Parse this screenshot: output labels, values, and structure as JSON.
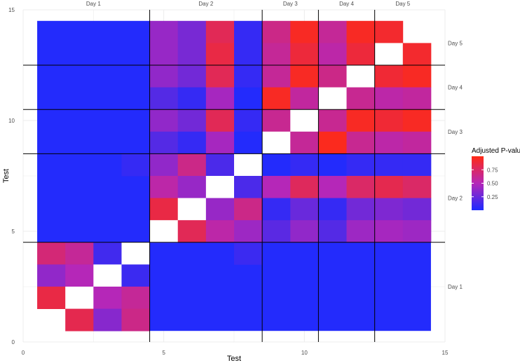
{
  "chart_data": {
    "type": "heatmap",
    "xlabel": "Test",
    "ylabel": "Test",
    "xlim": [
      0,
      15
    ],
    "ylim": [
      0,
      15
    ],
    "x_ticks": [
      0,
      5,
      10,
      15
    ],
    "y_ticks": [
      0,
      5,
      10,
      15
    ],
    "grid": true,
    "legend": {
      "title": "Adjusted P-value",
      "position": "right",
      "ticks": [
        0.25,
        0.5,
        0.75
      ],
      "range": [
        0,
        1
      ]
    },
    "colors": {
      "low": "#1d2bff",
      "mid": "#b527b8",
      "high": "#ff2a14",
      "diag": "#ffffff",
      "grid": "#ececec",
      "panel": "#ffffff"
    },
    "group_labels_top": [
      {
        "label": "Day 1",
        "from": 0.5,
        "to": 4.5
      },
      {
        "label": "Day 2",
        "from": 4.5,
        "to": 8.5
      },
      {
        "label": "Day 3",
        "from": 8.5,
        "to": 10.5
      },
      {
        "label": "Day 4",
        "from": 10.5,
        "to": 12.5
      },
      {
        "label": "Day 5",
        "from": 12.5,
        "to": 14.5
      }
    ],
    "group_labels_right": [
      {
        "label": "Day 1",
        "from": 0.5,
        "to": 4.5
      },
      {
        "label": "Day 2",
        "from": 4.5,
        "to": 8.5
      },
      {
        "label": "Day 3",
        "from": 8.5,
        "to": 10.5
      },
      {
        "label": "Day 4",
        "from": 10.5,
        "to": 12.5
      },
      {
        "label": "Day 5",
        "from": 12.5,
        "to": 14.5
      }
    ],
    "group_boundaries": [
      4.5,
      8.5,
      10.5,
      12.5
    ],
    "values": [
      [
        0.02,
        0.02,
        0.02,
        0.02,
        0.02,
        0.02,
        0.02,
        0.02,
        0.02,
        0.02,
        0.02,
        0.02,
        0.02,
        0.02
      ],
      [
        0.02,
        0.02,
        0.02,
        0.02,
        0.02,
        0.02,
        0.02,
        0.02,
        0.02,
        0.02,
        0.02,
        0.02,
        0.02,
        0.02
      ],
      [
        0.02,
        0.02,
        0.02,
        0.02,
        0.02,
        0.02,
        0.02,
        0.02,
        0.02,
        0.02,
        0.02,
        0.02,
        0.02,
        0.02
      ],
      [
        0.02,
        0.02,
        0.02,
        0.05,
        0.35,
        0.55,
        0.15,
        null,
        0.01,
        0.05,
        0.01,
        0.05,
        0.06,
        0.08
      ],
      [
        0.02,
        0.02,
        0.02,
        0.02,
        0.45,
        0.35,
        null,
        0.15,
        0.45,
        0.75,
        0.45,
        0.7,
        0.75,
        0.72
      ],
      [
        0.02,
        0.02,
        0.02,
        0.02,
        0.8,
        null,
        0.35,
        0.6,
        0.05,
        0.22,
        0.06,
        0.25,
        0.3,
        0.25
      ],
      [
        0.02,
        0.02,
        0.02,
        0.02,
        null,
        0.75,
        0.5,
        0.38,
        0.18,
        0.35,
        0.15,
        0.4,
        0.42,
        0.38
      ],
      [
        0.02,
        0.02,
        0.02,
        0.02,
        0.18,
        0.08,
        0.4,
        0.02,
        null,
        0.55,
        0.92,
        0.58,
        0.55,
        0.52
      ],
      [
        0.02,
        0.02,
        0.02,
        0.02,
        0.35,
        0.25,
        0.75,
        0.05,
        0.6,
        null,
        0.55,
        0.92,
        0.88,
        0.92
      ],
      [
        0.02,
        0.02,
        0.02,
        0.02,
        0.15,
        0.06,
        0.45,
        0.01,
        0.95,
        0.55,
        null,
        0.6,
        0.55,
        0.58
      ],
      [
        0.02,
        0.02,
        0.02,
        0.02,
        0.35,
        0.25,
        0.75,
        0.08,
        0.6,
        0.95,
        0.65,
        null,
        0.85,
        0.92
      ],
      [
        0.02,
        0.02,
        0.02,
        0.02,
        0.4,
        0.3,
        0.8,
        0.08,
        0.55,
        0.85,
        0.55,
        0.85,
        null,
        0.9
      ],
      [
        0.02,
        0.02,
        0.02,
        0.02,
        0.38,
        0.28,
        0.8,
        0.08,
        0.6,
        0.95,
        0.6,
        0.95,
        0.92,
        null
      ],
      [
        0.85,
        0.6,
        0.55,
        null,
        null,
        null,
        null,
        null,
        null,
        null,
        null,
        null,
        null,
        null
      ],
      [
        0.55,
        0.45,
        null,
        0.6,
        null,
        null,
        null,
        null,
        null,
        null,
        null,
        null,
        null,
        null
      ],
      [
        0.35,
        0.5,
        null,
        0.1,
        null,
        null,
        null,
        null,
        null,
        null,
        null,
        null,
        null,
        null
      ],
      [
        null,
        0.85,
        0.35,
        0.6,
        null,
        null,
        null,
        null,
        null,
        null,
        null,
        null,
        null,
        null
      ],
      [
        null,
        0.8,
        0.35,
        0.6,
        null,
        null,
        null,
        null,
        null,
        null,
        null,
        null,
        null,
        null
      ],
      [
        null,
        null,
        0.08,
        null,
        null,
        null,
        null,
        null,
        null,
        null,
        null,
        null,
        null,
        null
      ]
    ],
    "lower_block": {
      "note_rows_y": [
        4,
        3,
        2,
        1
      ],
      "cells": [
        {
          "x": 1,
          "y": 4,
          "v": 0.7
        },
        {
          "x": 2,
          "y": 4,
          "v": 0.6
        },
        {
          "x": 3,
          "y": 4,
          "v": 0.12
        },
        {
          "x": 4,
          "y": 4,
          "v": null
        },
        {
          "x": 1,
          "y": 3,
          "v": 0.38
        },
        {
          "x": 2,
          "y": 3,
          "v": 0.5
        },
        {
          "x": 3,
          "y": 3,
          "v": null
        },
        {
          "x": 4,
          "y": 3,
          "v": 0.1
        },
        {
          "x": 1,
          "y": 2,
          "v": 0.85
        },
        {
          "x": 2,
          "y": 2,
          "v": null
        },
        {
          "x": 3,
          "y": 2,
          "v": 0.5
        },
        {
          "x": 4,
          "y": 2,
          "v": 0.6
        },
        {
          "x": 2,
          "y": 1,
          "v": 0.82
        },
        {
          "x": 3,
          "y": 1,
          "v": 0.35
        },
        {
          "x": 4,
          "y": 1,
          "v": 0.65
        }
      ]
    },
    "upper_block": {
      "cells": [
        {
          "x": 5,
          "y": 14,
          "v": 0.4
        },
        {
          "x": 6,
          "y": 14,
          "v": 0.3
        },
        {
          "x": 7,
          "y": 14,
          "v": 0.8
        },
        {
          "x": 8,
          "y": 14,
          "v": 0.08
        },
        {
          "x": 9,
          "y": 14,
          "v": 0.65
        },
        {
          "x": 10,
          "y": 14,
          "v": 0.95
        },
        {
          "x": 11,
          "y": 14,
          "v": 0.6
        },
        {
          "x": 12,
          "y": 14,
          "v": 0.95
        },
        {
          "x": 13,
          "y": 14,
          "v": 0.92
        },
        {
          "x": 5,
          "y": 13,
          "v": 0.4
        },
        {
          "x": 6,
          "y": 13,
          "v": 0.3
        },
        {
          "x": 7,
          "y": 13,
          "v": 0.85
        },
        {
          "x": 8,
          "y": 13,
          "v": 0.08
        },
        {
          "x": 9,
          "y": 13,
          "v": 0.6
        },
        {
          "x": 10,
          "y": 13,
          "v": 0.88
        },
        {
          "x": 11,
          "y": 13,
          "v": 0.55
        },
        {
          "x": 12,
          "y": 13,
          "v": 0.88
        },
        {
          "x": 13,
          "y": 13,
          "v": null
        },
        {
          "x": 14,
          "y": 13,
          "v": 0.92
        },
        {
          "x": 5,
          "y": 12,
          "v": 0.38
        },
        {
          "x": 6,
          "y": 12,
          "v": 0.28
        },
        {
          "x": 7,
          "y": 12,
          "v": 0.8
        },
        {
          "x": 8,
          "y": 12,
          "v": 0.08
        },
        {
          "x": 9,
          "y": 12,
          "v": 0.6
        },
        {
          "x": 10,
          "y": 12,
          "v": 0.95
        },
        {
          "x": 11,
          "y": 12,
          "v": 0.65
        },
        {
          "x": 12,
          "y": 12,
          "v": null
        },
        {
          "x": 13,
          "y": 12,
          "v": 0.9
        },
        {
          "x": 14,
          "y": 12,
          "v": 0.95
        },
        {
          "x": 5,
          "y": 11,
          "v": 0.18
        },
        {
          "x": 6,
          "y": 11,
          "v": 0.08
        },
        {
          "x": 7,
          "y": 11,
          "v": 0.45
        },
        {
          "x": 8,
          "y": 11,
          "v": 0.02
        },
        {
          "x": 9,
          "y": 11,
          "v": 0.95
        },
        {
          "x": 10,
          "y": 11,
          "v": 0.58
        },
        {
          "x": 11,
          "y": 11,
          "v": null
        },
        {
          "x": 12,
          "y": 11,
          "v": 0.62
        },
        {
          "x": 13,
          "y": 11,
          "v": 0.55
        },
        {
          "x": 14,
          "y": 11,
          "v": 0.58
        },
        {
          "x": 5,
          "y": 10,
          "v": 0.38
        },
        {
          "x": 6,
          "y": 10,
          "v": 0.28
        },
        {
          "x": 7,
          "y": 10,
          "v": 0.8
        },
        {
          "x": 8,
          "y": 10,
          "v": 0.08
        },
        {
          "x": 9,
          "y": 10,
          "v": 0.62
        },
        {
          "x": 10,
          "y": 10,
          "v": null
        },
        {
          "x": 11,
          "y": 10,
          "v": 0.62
        },
        {
          "x": 12,
          "y": 10,
          "v": 0.95
        },
        {
          "x": 13,
          "y": 10,
          "v": 0.9
        },
        {
          "x": 14,
          "y": 10,
          "v": 0.95
        },
        {
          "x": 5,
          "y": 9,
          "v": 0.18
        },
        {
          "x": 6,
          "y": 9,
          "v": 0.08
        },
        {
          "x": 7,
          "y": 9,
          "v": 0.45
        },
        {
          "x": 8,
          "y": 9,
          "v": 0.02
        },
        {
          "x": 9,
          "y": 9,
          "v": null
        },
        {
          "x": 10,
          "y": 9,
          "v": 0.6
        },
        {
          "x": 11,
          "y": 9,
          "v": 0.97
        },
        {
          "x": 12,
          "y": 9,
          "v": 0.62
        },
        {
          "x": 13,
          "y": 9,
          "v": 0.55
        },
        {
          "x": 14,
          "y": 9,
          "v": 0.58
        },
        {
          "x": 4,
          "y": 8,
          "v": 0.08
        },
        {
          "x": 5,
          "y": 8,
          "v": 0.38
        },
        {
          "x": 6,
          "y": 8,
          "v": 0.65
        },
        {
          "x": 7,
          "y": 8,
          "v": 0.15
        },
        {
          "x": 8,
          "y": 8,
          "v": null
        },
        {
          "x": 9,
          "y": 8,
          "v": 0.02
        },
        {
          "x": 10,
          "y": 8,
          "v": 0.08
        },
        {
          "x": 11,
          "y": 8,
          "v": 0.02
        },
        {
          "x": 12,
          "y": 8,
          "v": 0.08
        },
        {
          "x": 13,
          "y": 8,
          "v": 0.08
        },
        {
          "x": 14,
          "y": 8,
          "v": 0.08
        },
        {
          "x": 5,
          "y": 7,
          "v": 0.55
        },
        {
          "x": 6,
          "y": 7,
          "v": 0.4
        },
        {
          "x": 7,
          "y": 7,
          "v": null
        },
        {
          "x": 8,
          "y": 7,
          "v": 0.15
        },
        {
          "x": 9,
          "y": 7,
          "v": 0.5
        },
        {
          "x": 10,
          "y": 7,
          "v": 0.78
        },
        {
          "x": 11,
          "y": 7,
          "v": 0.5
        },
        {
          "x": 12,
          "y": 7,
          "v": 0.75
        },
        {
          "x": 13,
          "y": 7,
          "v": 0.82
        },
        {
          "x": 14,
          "y": 7,
          "v": 0.75
        },
        {
          "x": 5,
          "y": 6,
          "v": 0.85
        },
        {
          "x": 6,
          "y": 6,
          "v": null
        },
        {
          "x": 7,
          "y": 6,
          "v": 0.4
        },
        {
          "x": 8,
          "y": 6,
          "v": 0.65
        },
        {
          "x": 9,
          "y": 6,
          "v": 0.08
        },
        {
          "x": 10,
          "y": 6,
          "v": 0.25
        },
        {
          "x": 11,
          "y": 6,
          "v": 0.08
        },
        {
          "x": 12,
          "y": 6,
          "v": 0.28
        },
        {
          "x": 13,
          "y": 6,
          "v": 0.32
        },
        {
          "x": 14,
          "y": 6,
          "v": 0.28
        },
        {
          "x": 5,
          "y": 5,
          "v": null
        },
        {
          "x": 6,
          "y": 5,
          "v": 0.8
        },
        {
          "x": 7,
          "y": 5,
          "v": 0.55
        },
        {
          "x": 8,
          "y": 5,
          "v": 0.42
        },
        {
          "x": 9,
          "y": 5,
          "v": 0.2
        },
        {
          "x": 10,
          "y": 5,
          "v": 0.38
        },
        {
          "x": 11,
          "y": 5,
          "v": 0.18
        },
        {
          "x": 12,
          "y": 5,
          "v": 0.42
        },
        {
          "x": 13,
          "y": 5,
          "v": 0.45
        },
        {
          "x": 14,
          "y": 5,
          "v": 0.42
        },
        {
          "x": 8,
          "y": 4,
          "v": 0.1
        }
      ]
    },
    "blue_fill_regions": [
      {
        "x0": 0.5,
        "x1": 4.5,
        "y0": 4.5,
        "y1": 14.5,
        "v": 0.02
      },
      {
        "x0": 4.5,
        "x1": 14.5,
        "y0": 0.5,
        "y1": 4.5,
        "v": 0.02
      }
    ]
  }
}
